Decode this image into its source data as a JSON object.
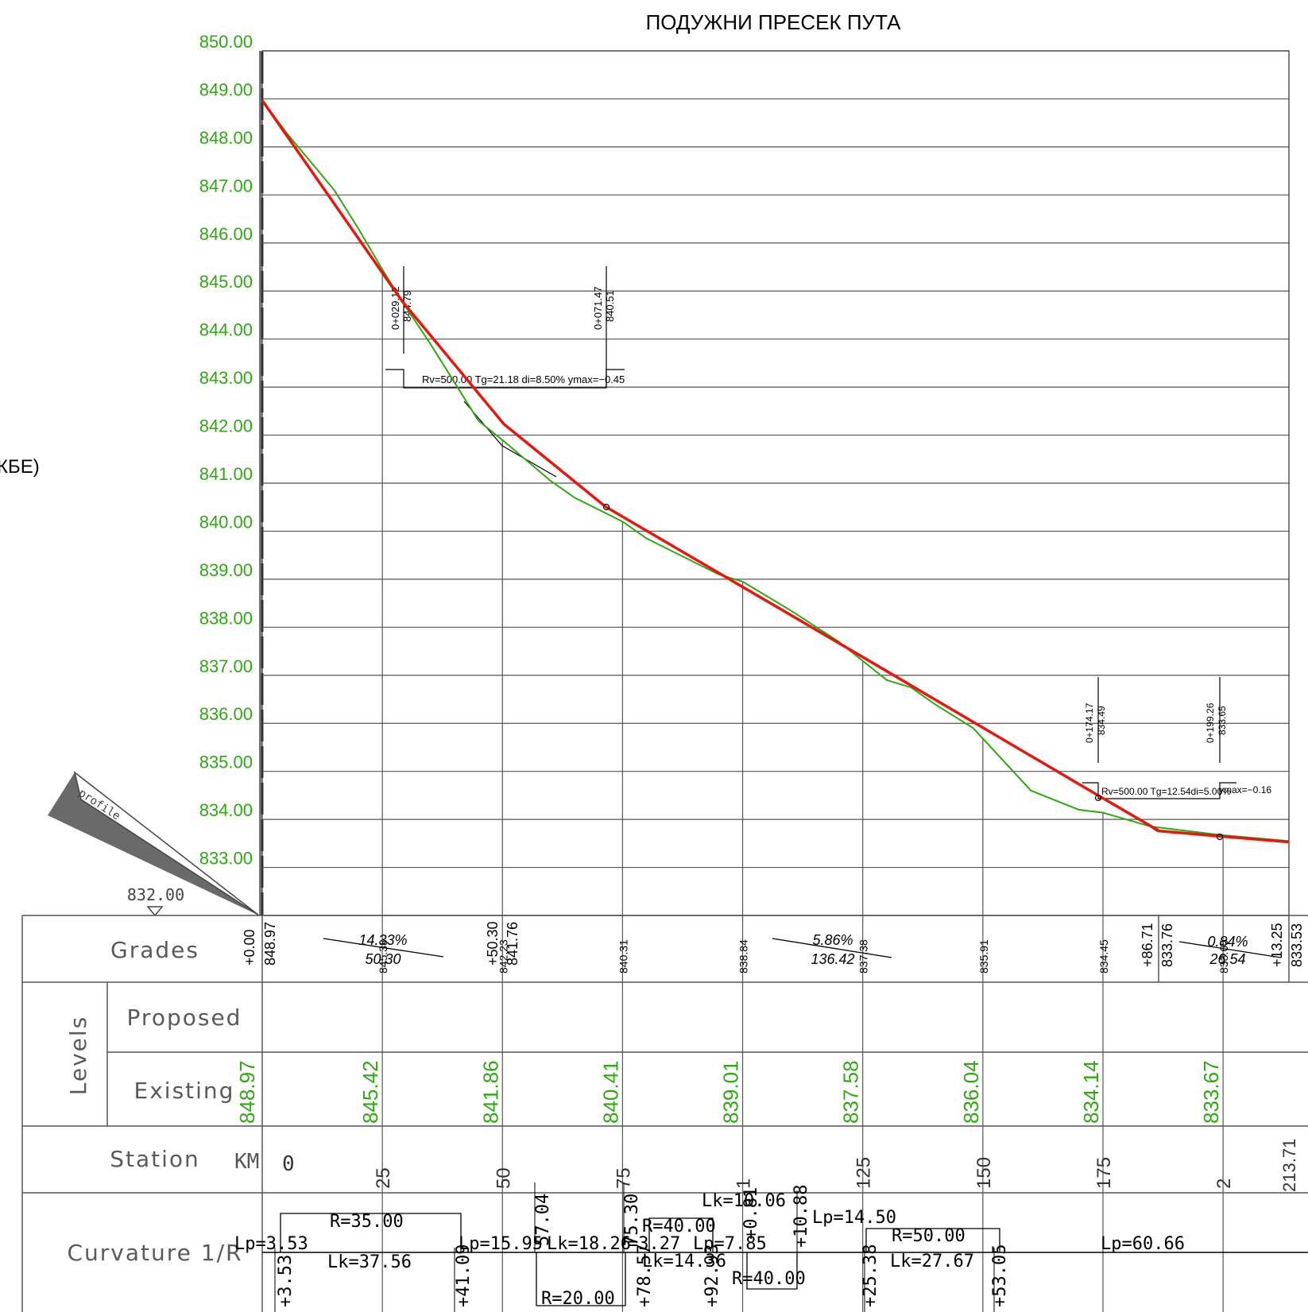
{
  "title": "ПОДУЖНИ ПРЕСЕК ПУТА",
  "left_fragment": "КБЕ)",
  "datum": "832.00",
  "profile_tag": "profile",
  "colors": {
    "existing": "#2fa812",
    "proposed": "#e8170e",
    "grid": "#555555",
    "text": "#000000"
  },
  "chart_data": {
    "type": "line",
    "ylim": [
      832,
      850
    ],
    "xlim": [
      0,
      213.71
    ],
    "y_ticks": [
      "833.00",
      "834.00",
      "835.00",
      "836.00",
      "837.00",
      "838.00",
      "839.00",
      "840.00",
      "841.00",
      "842.00",
      "843.00",
      "844.00",
      "845.00",
      "846.00",
      "847.00",
      "848.00",
      "849.00",
      "850.00"
    ],
    "series": [
      {
        "values_x": [
          0,
          5,
          10,
          15,
          20,
          25,
          29,
          35,
          40,
          45,
          50,
          60,
          65,
          75,
          80,
          95,
          100,
          110,
          120,
          130,
          135,
          140,
          148,
          160,
          170,
          175,
          185,
          200,
          213.71
        ],
        "values_y": [
          848.97,
          848.3,
          847.7,
          847.1,
          846.3,
          845.45,
          844.8,
          843.9,
          843.1,
          842.3,
          841.9,
          841.05,
          840.7,
          840.2,
          839.85,
          839.1,
          838.95,
          838.35,
          837.7,
          836.9,
          836.75,
          836.4,
          835.9,
          834.6,
          834.2,
          834.14,
          833.85,
          833.67,
          833.55
        ]
      },
      {
        "values_x": [
          0,
          25,
          29.12,
          50.3,
          71.47,
          100,
          125,
          150,
          174.17,
          186.71,
          199.26,
          213.71
        ],
        "values_y": [
          848.97,
          845.38,
          844.79,
          842.23,
          840.51,
          838.84,
          837.38,
          835.91,
          834.49,
          833.76,
          833.65,
          833.53
        ]
      }
    ]
  },
  "curve_annotations": [
    {
      "id": "vc1",
      "start": "0+029.12",
      "start_elev": "844.79",
      "mid": "0+071.47",
      "mid_elev": "840.51",
      "params": "Rv=500.00 Tg=21.18 di=8.50%   ymax=−0.45"
    },
    {
      "id": "vc2",
      "start": "0+174.17",
      "start_elev": "834.49",
      "mid": "0+199.26",
      "mid_elev": "833.65",
      "params": "Rv=500.00 Tg=12.54di=5.00%",
      "ymax": "ymax=−0.16"
    }
  ],
  "rows": {
    "grades": "Grades",
    "levels": "Levels",
    "proposed": "Proposed",
    "existing": "Existing",
    "station": "Station",
    "curvature": "Curvature 1/R"
  },
  "grades": [
    {
      "pct": "14.33%",
      "len": "50.30"
    },
    {
      "pct": "5.86%",
      "len": "136.42"
    },
    {
      "pct": "0.84%",
      "len": "26.54"
    }
  ],
  "grade_points": [
    {
      "st": "+0.00",
      "el": "848.97"
    },
    {
      "st": "+50.30",
      "el": "841.76"
    },
    {
      "st": "+86.71",
      "el": "833.76"
    },
    {
      "st": "+13.25",
      "el": "833.53"
    }
  ],
  "proposed_levels": [
    "845.38",
    "842.23",
    "840.31",
    "838.84",
    "837.38",
    "835.91",
    "834.45",
    "833.65"
  ],
  "existing_levels": [
    "848.97",
    "845.42",
    "841.86",
    "840.41",
    "839.01",
    "837.58",
    "836.04",
    "834.14",
    "833.67"
  ],
  "station": {
    "km": "KM",
    "zero": "0",
    "ticks": [
      "25",
      "50",
      "75",
      "1",
      "125",
      "150",
      "175",
      "2"
    ],
    "end": "213.71"
  },
  "curvature": {
    "labels": [
      "Lp=3.53",
      "R=35.00",
      "Lk=37.56",
      "Lp=15.95",
      "Lk=18.26",
      "R=20.00",
      "R=40.00",
      "Lk=14.36",
      "Lp=7.85",
      "Lk=10.06",
      "R=40.00",
      "Lp=14.50",
      "R=50.00",
      "Lk=27.67",
      "Lp=60.66"
    ],
    "stations": [
      "+3.53",
      "+41.09",
      "57.04",
      "75.30",
      "+78.57",
      "+92.93",
      "+0.81",
      "+10.88",
      "+25.38",
      "+53.05"
    ],
    "partial": "=3.27"
  }
}
